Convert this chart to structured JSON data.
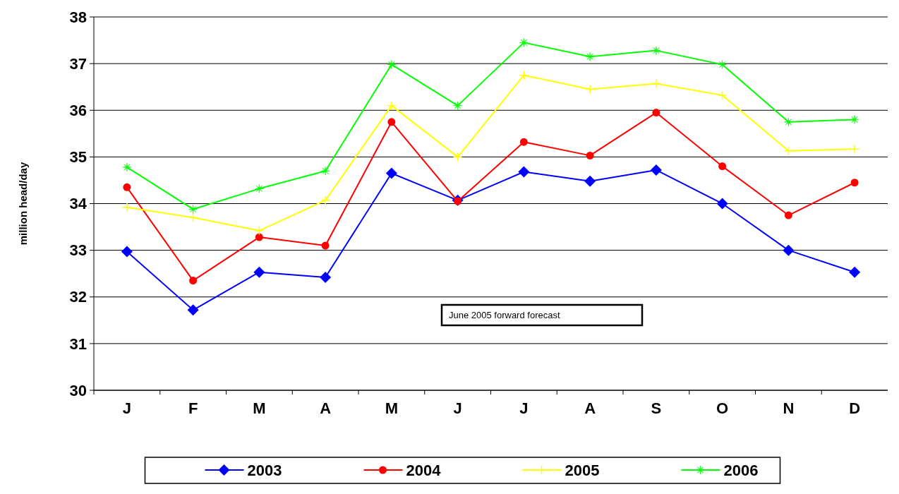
{
  "chart_data": {
    "type": "line",
    "ylabel": "million head/day",
    "categories": [
      "J",
      "F",
      "M",
      "A",
      "M",
      "J",
      "J",
      "A",
      "S",
      "O",
      "N",
      "D"
    ],
    "ylim": [
      30,
      38
    ],
    "yticks": [
      30,
      31,
      32,
      33,
      34,
      35,
      36,
      37,
      38
    ],
    "grid": "y",
    "legend": "bottom",
    "annotations": [
      "June 2005 forward forecast"
    ],
    "series": [
      {
        "name": "2003",
        "color": "#0000ff",
        "marker": "diamond",
        "values": [
          32.97,
          31.72,
          32.53,
          32.42,
          34.65,
          34.07,
          34.68,
          34.48,
          34.72,
          34.0,
          33.0,
          32.53
        ]
      },
      {
        "name": "2004",
        "color": "#ff0000",
        "marker": "circle",
        "values": [
          34.35,
          32.35,
          33.28,
          33.1,
          35.75,
          34.05,
          35.32,
          35.03,
          35.95,
          34.8,
          33.75,
          34.45
        ]
      },
      {
        "name": "2005",
        "color": "#ffff00",
        "marker": "cross",
        "values": [
          33.92,
          33.7,
          33.42,
          34.07,
          36.1,
          35.0,
          36.75,
          36.45,
          36.57,
          36.32,
          35.13,
          35.17
        ]
      },
      {
        "name": "2006",
        "color": "#00ff00",
        "marker": "star",
        "values": [
          34.78,
          33.88,
          34.32,
          34.7,
          36.98,
          36.1,
          37.45,
          37.15,
          37.28,
          36.98,
          35.75,
          35.8
        ]
      }
    ]
  }
}
